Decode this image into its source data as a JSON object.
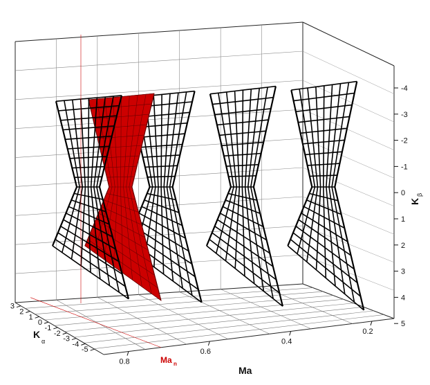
{
  "chart_data": {
    "type": "surface3d",
    "title": "",
    "axes": {
      "x": {
        "label": "Ma",
        "ticks": [
          "0.8",
          "0.6",
          "0.4",
          "0.2"
        ],
        "marker": {
          "label": "Ma",
          "subscript": "n",
          "value": 0.72,
          "color": "#cc0000"
        }
      },
      "y": {
        "label": "K",
        "subscript": "α",
        "ticks": [
          "3",
          "2",
          "1",
          "0",
          "-1",
          "-2",
          "-3",
          "-4",
          "-5"
        ]
      },
      "z": {
        "label": "K",
        "subscript": "β",
        "ticks": [
          "-4",
          "-3",
          "-2",
          "-1",
          "0",
          "1",
          "2",
          "3",
          "4",
          "5"
        ]
      }
    },
    "series": [
      {
        "ma": 0.72,
        "color": "#cc0000",
        "style": "filled surface",
        "highlight": true
      },
      {
        "ma": 0.8,
        "color": "#000000",
        "style": "wireframe"
      },
      {
        "ma": 0.62,
        "color": "#000000",
        "style": "wireframe"
      },
      {
        "ma": 0.42,
        "color": "#000000",
        "style": "wireframe"
      },
      {
        "ma": 0.22,
        "color": "#000000",
        "style": "wireframe"
      }
    ]
  }
}
